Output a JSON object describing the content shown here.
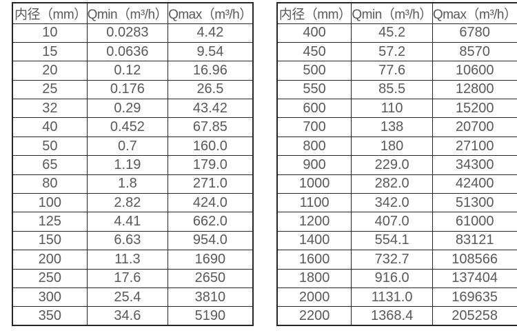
{
  "colors": {
    "background": "#ffffff",
    "border": "#262626",
    "text": "#595959"
  },
  "tables": [
    {
      "id": "flow-table-small-diameters",
      "headers": [
        "内径（mm）",
        "Qmin（m³/h）",
        "Qmax（m³/h）"
      ],
      "rows": [
        [
          "10",
          "0.0283",
          "4.42"
        ],
        [
          "15",
          "0.0636",
          "9.54"
        ],
        [
          "20",
          "0.12",
          "16.96"
        ],
        [
          "25",
          "0.176",
          "26.5"
        ],
        [
          "32",
          "0.29",
          "43.42"
        ],
        [
          "40",
          "0.452",
          "67.85"
        ],
        [
          "50",
          "0.7",
          "160.0"
        ],
        [
          "65",
          "1.19",
          "179.0"
        ],
        [
          "80",
          "1.8",
          "271.0"
        ],
        [
          "100",
          "2.82",
          "424.0"
        ],
        [
          "125",
          "4.41",
          "662.0"
        ],
        [
          "150",
          "6.63",
          "954.0"
        ],
        [
          "200",
          "11.3",
          "1690"
        ],
        [
          "250",
          "17.6",
          "2650"
        ],
        [
          "300",
          "25.4",
          "3810"
        ],
        [
          "350",
          "34.6",
          "5190"
        ]
      ]
    },
    {
      "id": "flow-table-large-diameters",
      "headers": [
        "内径（mm）",
        "Qmin（m³/h）",
        "Qmax（m³/h）"
      ],
      "rows": [
        [
          "400",
          "45.2",
          "6780"
        ],
        [
          "450",
          "57.2",
          "8570"
        ],
        [
          "500",
          "77.6",
          "10600"
        ],
        [
          "550",
          "85.5",
          "12800"
        ],
        [
          "600",
          "110",
          "15200"
        ],
        [
          "700",
          "138",
          "20700"
        ],
        [
          "800",
          "180",
          "27100"
        ],
        [
          "900",
          "229.0",
          "34300"
        ],
        [
          "1000",
          "282.0",
          "42400"
        ],
        [
          "1100",
          "342.0",
          "51300"
        ],
        [
          "1200",
          "407.0",
          "61000"
        ],
        [
          "1400",
          "554.1",
          "83121"
        ],
        [
          "1600",
          "732.7",
          "108566"
        ],
        [
          "1800",
          "916.0",
          "137404"
        ],
        [
          "2000",
          "1131.0",
          "169635"
        ],
        [
          "2200",
          "1368.4",
          "205258"
        ]
      ]
    }
  ]
}
